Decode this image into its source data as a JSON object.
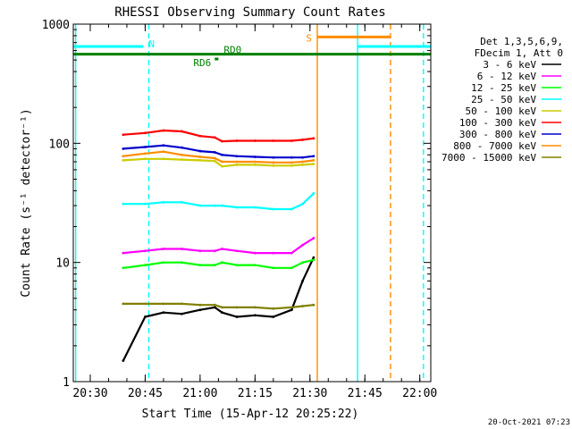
{
  "chart_data": {
    "type": "line",
    "title": "RHESSI Observing Summary Count Rates",
    "xlabel": "Start Time (15-Apr-12 20:25:22)",
    "ylabel": "Count Rate (s⁻¹ detector⁻¹)",
    "yscale": "log",
    "ylim": [
      1,
      1000
    ],
    "xlim": [
      "20:25:22",
      "22:03:00"
    ],
    "x_ticks": [
      "20:30",
      "20:45",
      "21:00",
      "21:15",
      "21:30",
      "21:45",
      "22:00"
    ],
    "y_ticks": [
      "1",
      "10",
      "100",
      "1000"
    ],
    "grid": false,
    "legend_position": "right",
    "legend_header": [
      "Det 1,3,5,6,9,",
      "FDecim 1, Att 0"
    ],
    "timestamp": "20-Oct-2021 07:23",
    "x": [
      "20:39:00",
      "20:45:00",
      "20:50:00",
      "20:55:00",
      "21:00:00",
      "21:04:00",
      "21:06:00",
      "21:10:00",
      "21:15:00",
      "21:20:00",
      "21:25:00",
      "21:28:00",
      "21:31:00"
    ],
    "series": [
      {
        "name": "3 - 6 keV",
        "color": "#000000",
        "values": [
          1.5,
          3.5,
          3.8,
          3.7,
          4.0,
          4.2,
          3.8,
          3.5,
          3.6,
          3.5,
          4.0,
          7.0,
          11.0
        ]
      },
      {
        "name": "6 - 12 keV",
        "color": "#ff00ff",
        "values": [
          12,
          12.5,
          13,
          13,
          12.5,
          12.5,
          13,
          12.5,
          12,
          12,
          12,
          14,
          16
        ]
      },
      {
        "name": "12 - 25 keV",
        "color": "#00ff00",
        "values": [
          9,
          9.5,
          10,
          10,
          9.5,
          9.5,
          10,
          9.5,
          9.5,
          9,
          9,
          10,
          10.5
        ]
      },
      {
        "name": "25 - 50 keV",
        "color": "#00ffff",
        "values": [
          31,
          31,
          32,
          32,
          30,
          30,
          30,
          29,
          29,
          28,
          28,
          31,
          38
        ]
      },
      {
        "name": "50 - 100 keV",
        "color": "#cccc00",
        "values": [
          72,
          74,
          74,
          73,
          72,
          71,
          64,
          66,
          66,
          65,
          65,
          66,
          67
        ]
      },
      {
        "name": "100 - 300 keV",
        "color": "#ff0000",
        "values": [
          118,
          122,
          128,
          126,
          115,
          112,
          104,
          105,
          105,
          105,
          105,
          107,
          110
        ]
      },
      {
        "name": "300 - 800 keV",
        "color": "#0000cc",
        "values": [
          90,
          93,
          96,
          92,
          86,
          84,
          80,
          78,
          77,
          76,
          76,
          76,
          78
        ]
      },
      {
        "name": "800 - 7000 keV",
        "color": "#ff8c00",
        "values": [
          78,
          82,
          85,
          80,
          77,
          75,
          70,
          70,
          70,
          69,
          69,
          70,
          72
        ]
      },
      {
        "name": "7000 - 15000 keV",
        "color": "#808000",
        "values": [
          4.5,
          4.5,
          4.5,
          4.5,
          4.4,
          4.4,
          4.2,
          4.2,
          4.2,
          4.1,
          4.2,
          4.3,
          4.4
        ]
      }
    ],
    "annotations": [
      {
        "label": "N",
        "color": "#00ffff",
        "bar_start": "20:25:22",
        "bar_end": "20:44:30",
        "level": 650
      },
      {
        "label": "N",
        "color": "#00ffff",
        "bar_start": "21:43:00",
        "bar_end": "22:03:00",
        "level": 650
      },
      {
        "label": "S",
        "color": "#ff8c00",
        "bar_start": "21:32:00",
        "bar_end": "21:52:00",
        "level": 780
      },
      {
        "label": "RD0",
        "color": "#008000",
        "bar_start": "20:25:22",
        "bar_end": "22:03:00",
        "level": 560
      },
      {
        "label": "RD6",
        "color": "#008000",
        "bar_start": "21:04:00",
        "bar_end": "21:05:00",
        "level": 510
      }
    ],
    "vertical_markers": [
      {
        "time": "20:26:00",
        "color": "#00ffff",
        "style": "solid"
      },
      {
        "time": "20:46:00",
        "color": "#00ffff",
        "style": "dashed"
      },
      {
        "time": "21:32:00",
        "color": "#ff8c00",
        "style": "solid"
      },
      {
        "time": "21:43:00",
        "color": "#00ffff",
        "style": "solid"
      },
      {
        "time": "21:52:00",
        "color": "#ff8c00",
        "style": "dashed"
      },
      {
        "time": "22:01:00",
        "color": "#00ffff",
        "style": "dashed"
      }
    ]
  }
}
